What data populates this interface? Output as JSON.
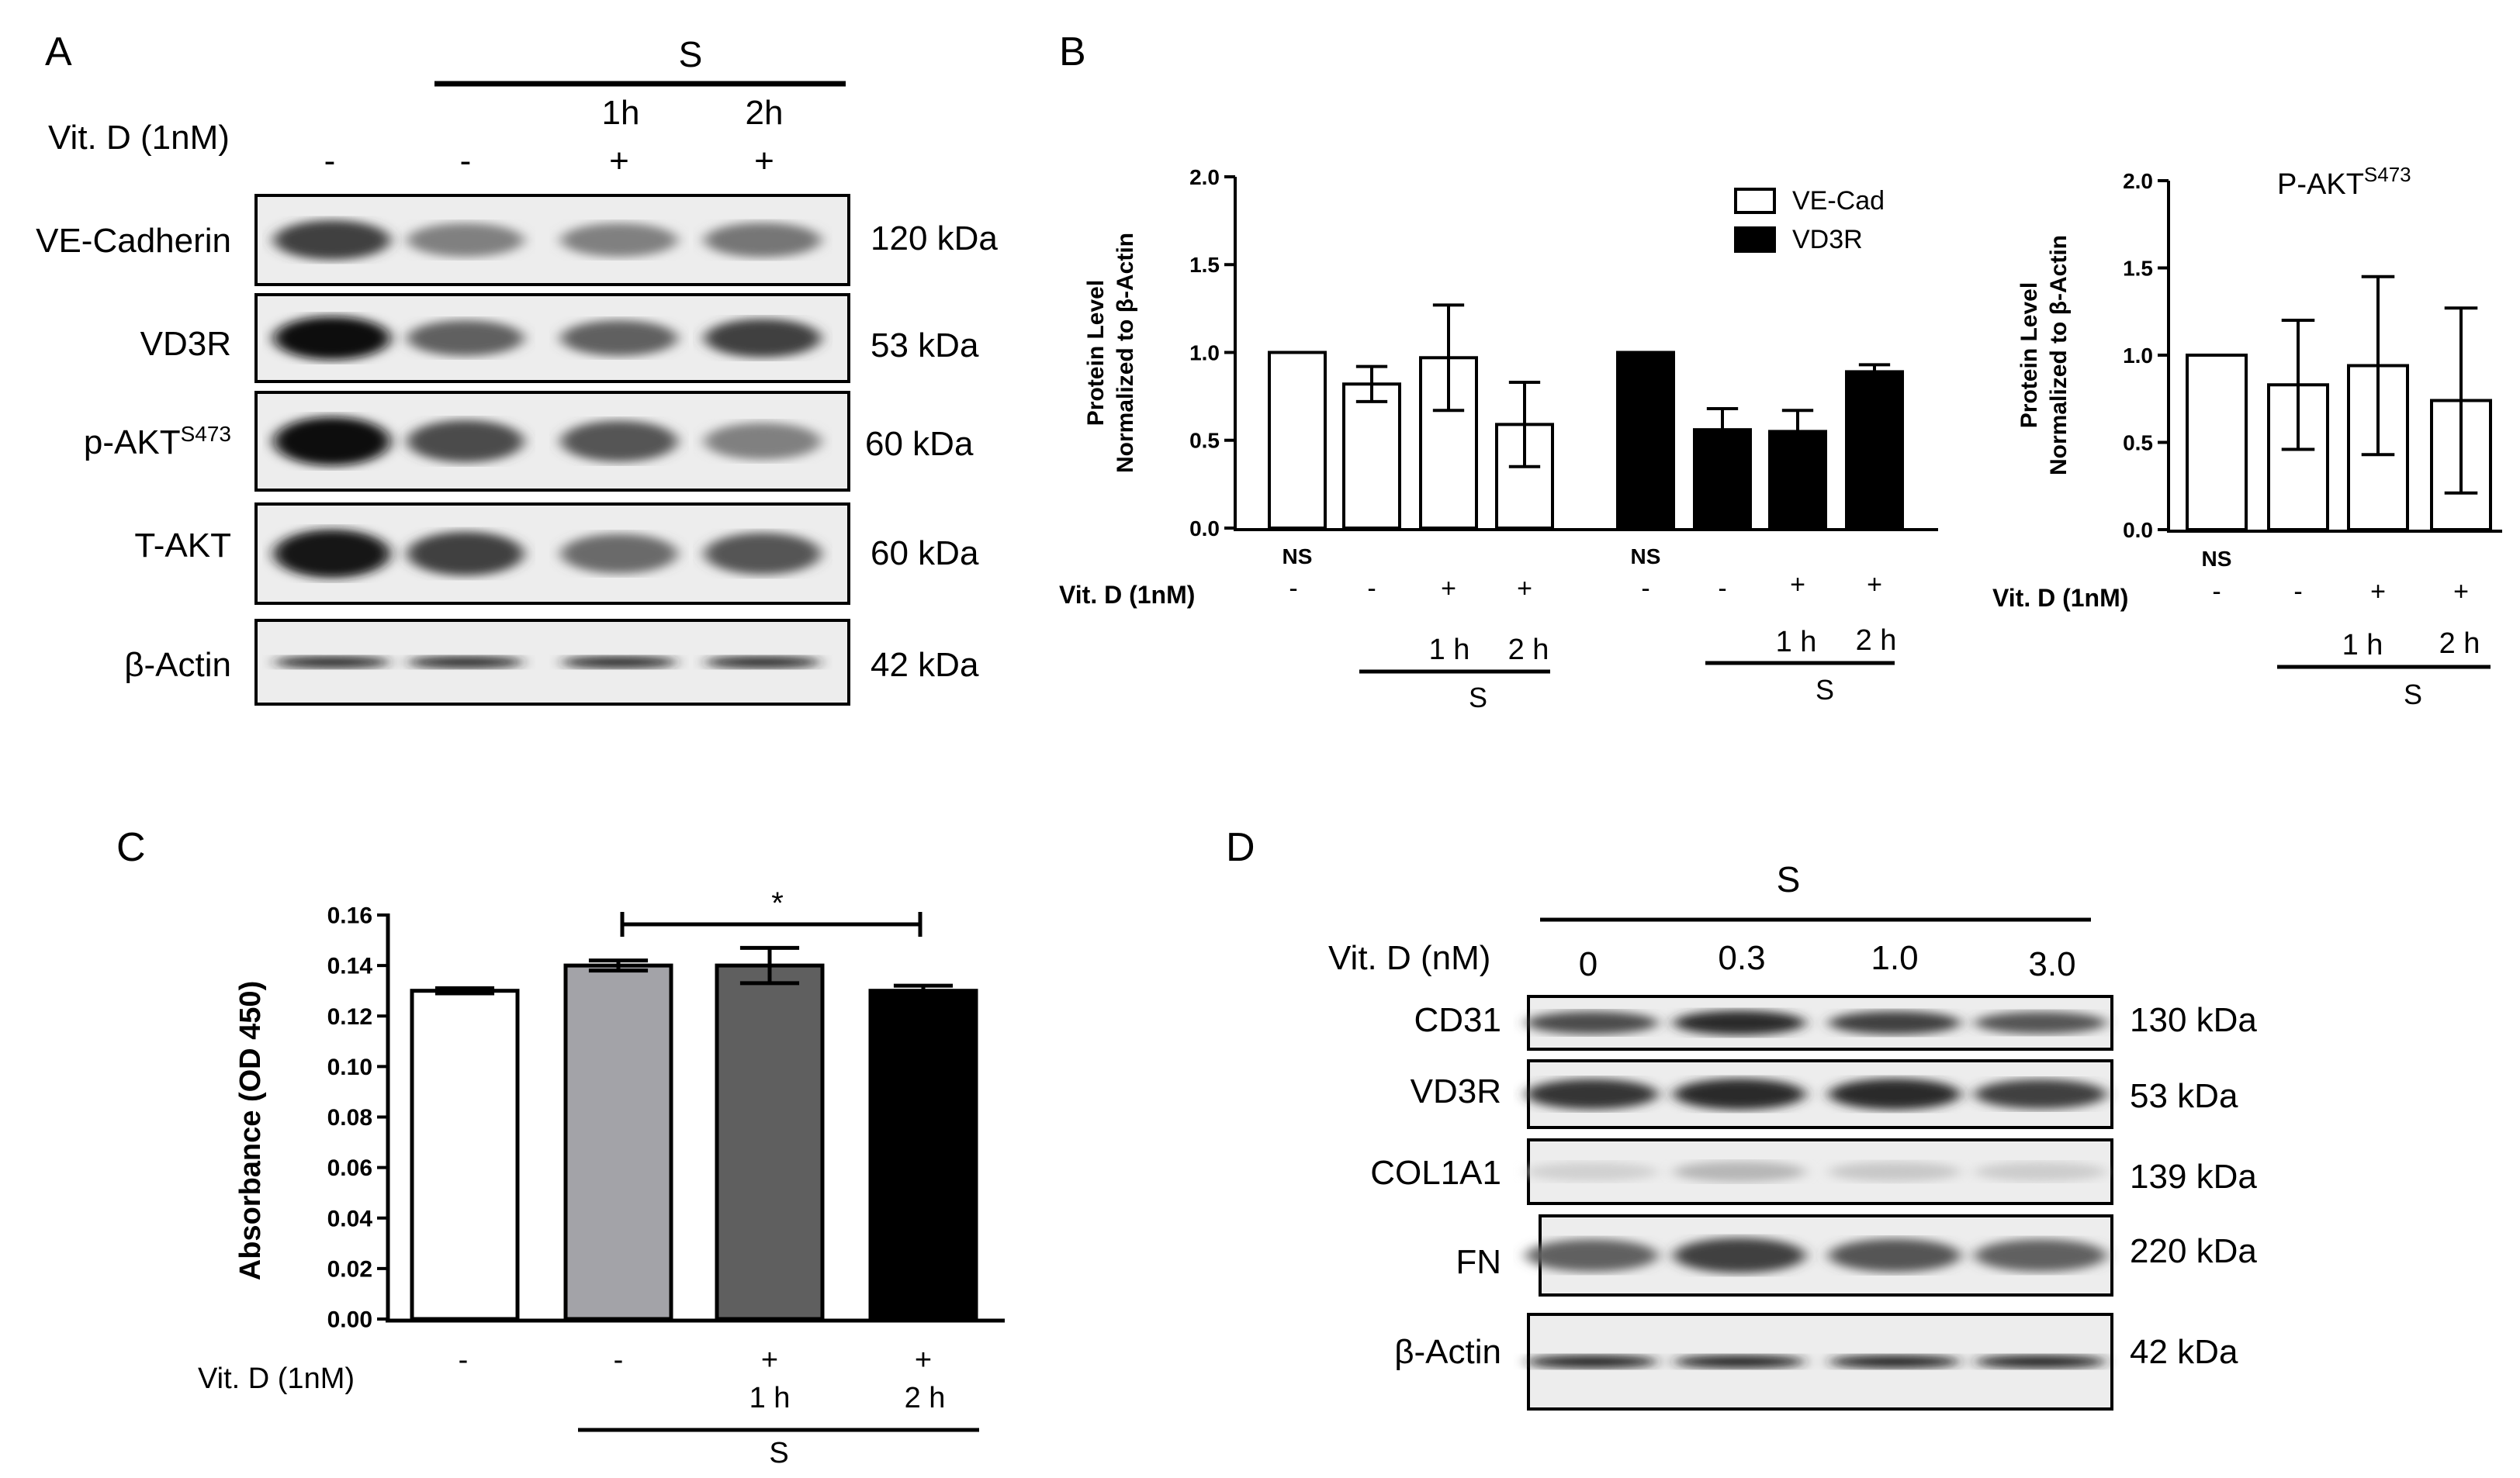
{
  "panel_A": {
    "letter": "A",
    "s_label": "S",
    "times": [
      "",
      "",
      "1h",
      "2h"
    ],
    "treatment_label": "Vit. D (1nM)",
    "signs": [
      "-",
      "-",
      "+",
      "+"
    ],
    "rows": [
      {
        "label": "VE-Cadherin",
        "sup": "",
        "size": "120 kDa",
        "intensity": [
          0.75,
          0.45,
          0.45,
          0.5
        ]
      },
      {
        "label": "VD3R",
        "sup": "",
        "size": "53 kDa",
        "intensity": [
          1.0,
          0.6,
          0.6,
          0.75
        ]
      },
      {
        "label": "p-AKT",
        "sup": "S473",
        "size": "60 kDa",
        "intensity": [
          1.0,
          0.7,
          0.65,
          0.45
        ]
      },
      {
        "label": "T-AKT",
        "sup": "",
        "size": "60 kDa",
        "intensity": [
          0.95,
          0.75,
          0.55,
          0.65
        ]
      },
      {
        "label": "β-Actin",
        "sup": "",
        "size": "42 kDa",
        "intensity": [
          0.9,
          0.9,
          0.9,
          0.9
        ]
      }
    ]
  },
  "panel_B": {
    "letter": "B",
    "chart_data": [
      {
        "type": "bar",
        "ylabel_line1": "Protein Level",
        "ylabel_line2": "Normalized to β-Actin",
        "yticks": [
          "0.0",
          "0.5",
          "1.0",
          "1.5",
          "2.0"
        ],
        "ylim": [
          0,
          2
        ],
        "legend": [
          {
            "name": "VE-Cad",
            "color": "#ffffff"
          },
          {
            "name": "VD3R",
            "color": "#000000"
          }
        ],
        "legend_position": "top-right",
        "groups": [
          {
            "name": "VE-Cad",
            "color": "#ffffff",
            "values": [
              1.0,
              0.82,
              0.97,
              0.59
            ],
            "errors": [
              0,
              0.1,
              0.3,
              0.24
            ]
          },
          {
            "name": "VD3R",
            "color": "#000000",
            "values": [
              1.0,
              0.56,
              0.55,
              0.89
            ],
            "errors": [
              0,
              0.12,
              0.12,
              0.04
            ]
          }
        ],
        "x_labels": [
          "NS",
          "-",
          "+",
          "+"
        ],
        "treatment_label": "Vit. D (1nM)",
        "time_labels": [
          "1 h",
          "2 h"
        ],
        "s_label": "S"
      },
      {
        "type": "bar",
        "title": "P-AKT",
        "title_sup": "S473",
        "ylabel_line1": "Protein Level",
        "ylabel_line2": "Normalized to β-Actin",
        "yticks": [
          "0.0",
          "0.5",
          "1.0",
          "1.5",
          "2.0"
        ],
        "ylim": [
          0,
          2
        ],
        "values": [
          1.0,
          0.83,
          0.94,
          0.74
        ],
        "errors": [
          0,
          0.37,
          0.51,
          0.53
        ],
        "x_labels": [
          "NS",
          "-",
          "+",
          "+"
        ],
        "treatment_label": "Vit. D (1nM)",
        "time_labels": [
          "1 h",
          "2 h"
        ],
        "s_label": "S"
      }
    ]
  },
  "panel_C": {
    "letter": "C",
    "chart_data": {
      "type": "bar",
      "ylabel": "Absorbance (OD 450)",
      "yticks": [
        "0.00",
        "0.02",
        "0.04",
        "0.06",
        "0.08",
        "0.10",
        "0.12",
        "0.14",
        "0.16"
      ],
      "ylim": [
        0,
        0.16
      ],
      "values": [
        0.13,
        0.14,
        0.14,
        0.13
      ],
      "errors": [
        0.001,
        0.002,
        0.007,
        0.002
      ],
      "colors": [
        "#ffffff",
        "#a3a3a8",
        "#5f5f5f",
        "#000000"
      ],
      "signs": [
        "-",
        "-",
        "+",
        "+"
      ],
      "treatment_label": "Vit. D (1nM)",
      "times": [
        "",
        "",
        "1 h",
        "2 h"
      ],
      "s_label": "S",
      "significance": "*"
    }
  },
  "panel_D": {
    "letter": "D",
    "s_label": "S",
    "treatment_label": "Vit. D (nM)",
    "doses": [
      "0",
      "0.3",
      "1.0",
      "3.0"
    ],
    "rows": [
      {
        "label": "CD31",
        "size": "130 kDa",
        "intensity": [
          0.7,
          0.85,
          0.75,
          0.65
        ]
      },
      {
        "label": "VD3R",
        "size": "53 kDa",
        "intensity": [
          0.8,
          0.85,
          0.85,
          0.75
        ]
      },
      {
        "label": "COL1A1",
        "size": "139 kDa",
        "intensity": [
          0.08,
          0.2,
          0.12,
          0.1
        ]
      },
      {
        "label": "FN",
        "size": "220 kDa",
        "intensity": [
          0.6,
          0.75,
          0.65,
          0.6
        ]
      },
      {
        "label": "β-Actin",
        "size": "42 kDa",
        "intensity": [
          0.9,
          0.9,
          0.9,
          0.9
        ]
      }
    ]
  }
}
